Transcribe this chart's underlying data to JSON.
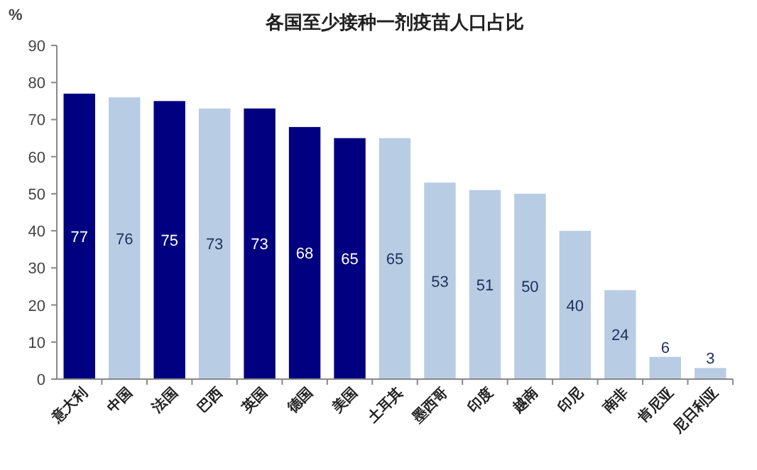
{
  "chart_data": {
    "type": "bar",
    "title": "各国至少接种一剂疫苗人口占比",
    "ylabel": "%",
    "categories": [
      "意大利",
      "中国",
      "法国",
      "巴西",
      "英国",
      "德国",
      "美国",
      "土耳其",
      "墨西哥",
      "印度",
      "越南",
      "印尼",
      "南非",
      "肯尼亚",
      "尼日利亚"
    ],
    "values": [
      77,
      76,
      75,
      73,
      73,
      68,
      65,
      65,
      53,
      51,
      50,
      40,
      24,
      6,
      3
    ],
    "colors": [
      "#000080",
      "#b8cce4",
      "#000080",
      "#b8cce4",
      "#000080",
      "#000080",
      "#000080",
      "#b8cce4",
      "#b8cce4",
      "#b8cce4",
      "#b8cce4",
      "#b8cce4",
      "#b8cce4",
      "#b8cce4",
      "#b8cce4"
    ],
    "ylim": [
      0,
      90
    ],
    "yticks": [
      0,
      10,
      20,
      30,
      40,
      50,
      60,
      70,
      80,
      90
    ],
    "data_labels": true
  }
}
